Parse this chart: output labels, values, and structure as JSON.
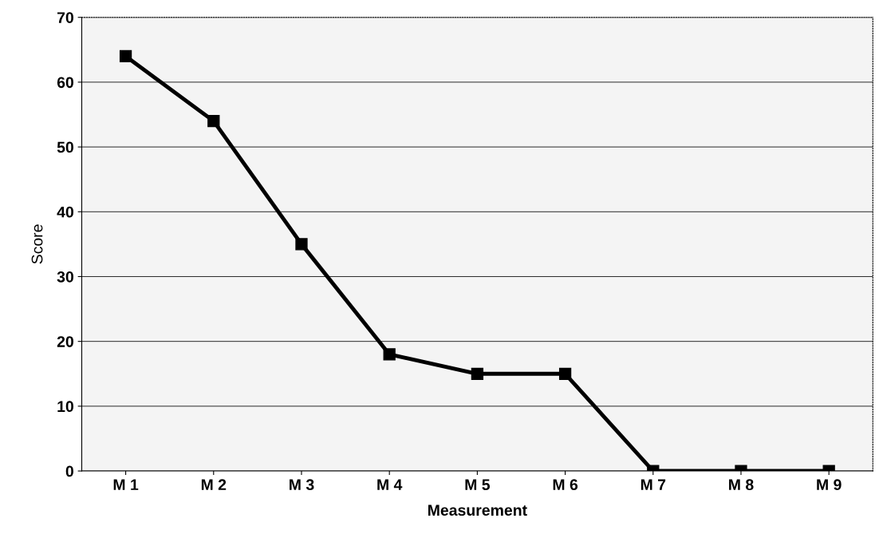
{
  "chart_data": {
    "type": "line",
    "xlabel": "Measurement",
    "ylabel": "Score",
    "categories": [
      "M 1",
      "M 2",
      "M 3",
      "M 4",
      "M 5",
      "M 6",
      "M 7",
      "M 8",
      "M 9"
    ],
    "series": [
      {
        "color": "#000000",
        "values": [
          64,
          54,
          35,
          18,
          15,
          15,
          0,
          0,
          0
        ]
      }
    ],
    "ylim": [
      0,
      70
    ],
    "yticks": [
      0,
      10,
      20,
      30,
      40,
      50,
      60,
      70
    ],
    "grid": "y",
    "marker": "square",
    "line_style": "solid",
    "legend": false
  }
}
